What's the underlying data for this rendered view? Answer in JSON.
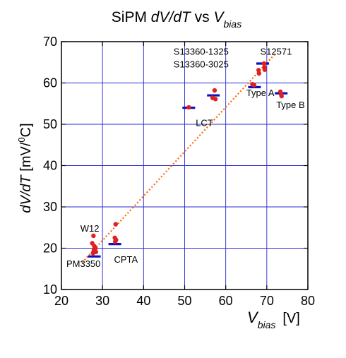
{
  "chart_data": {
    "type": "scatter",
    "title": {
      "main": "SiPM ",
      "italic1": "dV/dT",
      "mid": " vs ",
      "italic2": "V",
      "sub": "bias"
    },
    "ylabel": {
      "italic": "dV/dT",
      "unit": " [mV/",
      "sup": "0",
      "unit_end": "C]"
    },
    "xlabel": {
      "italic": "V",
      "sub": "bias",
      "unit": "[V]"
    },
    "xlim": [
      20,
      80
    ],
    "ylim": [
      10,
      70
    ],
    "xticks": [
      "20",
      "30",
      "40",
      "50",
      "60",
      "70",
      "80"
    ],
    "yticks": [
      "10",
      "20",
      "30",
      "40",
      "50",
      "60",
      "70"
    ],
    "grid": true,
    "series": [
      {
        "kind": "points",
        "color": "#e02020",
        "points": [
          [
            27.8,
            23.0
          ],
          [
            27.5,
            21.2
          ],
          [
            28.0,
            20.5
          ],
          [
            28.3,
            20.0
          ],
          [
            27.9,
            19.5
          ],
          [
            28.4,
            19.1
          ],
          [
            27.7,
            18.8
          ],
          [
            33.2,
            25.8
          ],
          [
            33.0,
            22.5
          ],
          [
            33.3,
            22.0
          ],
          [
            33.1,
            21.6
          ],
          [
            51.0,
            54.1
          ],
          [
            57.3,
            58.2
          ],
          [
            56.8,
            56.4
          ],
          [
            57.5,
            56.1
          ],
          [
            66.5,
            59.7
          ],
          [
            66.9,
            59.5
          ],
          [
            68.0,
            63.1
          ],
          [
            68.1,
            62.3
          ],
          [
            69.3,
            64.7
          ],
          [
            69.4,
            63.8
          ],
          [
            69.5,
            63.2
          ],
          [
            73.3,
            57.9
          ],
          [
            73.5,
            57.2
          ],
          [
            73.6,
            56.8
          ]
        ]
      },
      {
        "kind": "means",
        "color": "#1010c0",
        "points": [
          [
            28.0,
            18.0
          ],
          [
            33.0,
            21.0
          ],
          [
            51.0,
            54.0
          ],
          [
            57.0,
            57.0
          ],
          [
            67.0,
            59.0
          ],
          [
            69.0,
            64.7
          ],
          [
            73.5,
            57.5
          ]
        ]
      },
      {
        "kind": "fit",
        "color": "#ff6600",
        "points": [
          [
            25.0,
            16.5
          ],
          [
            72.0,
            67.0
          ]
        ]
      }
    ],
    "annotations": [
      {
        "text": "W12",
        "x": 24.6,
        "y": 24.0
      },
      {
        "text": "PM3350",
        "x": 21.2,
        "y": 15.5
      },
      {
        "text": "CPTA",
        "x": 32.8,
        "y": 16.5
      },
      {
        "text": "S13360-1325",
        "x": 47.3,
        "y": 66.8
      },
      {
        "text": "S13360-3025",
        "x": 47.3,
        "y": 63.8
      },
      {
        "text": "S12571",
        "x": 68.4,
        "y": 66.8
      },
      {
        "text": "Type A",
        "x": 65.0,
        "y": 56.8
      },
      {
        "text": "LCT",
        "x": 52.7,
        "y": 49.6
      },
      {
        "text": "Type B",
        "x": 72.3,
        "y": 53.9
      }
    ]
  }
}
